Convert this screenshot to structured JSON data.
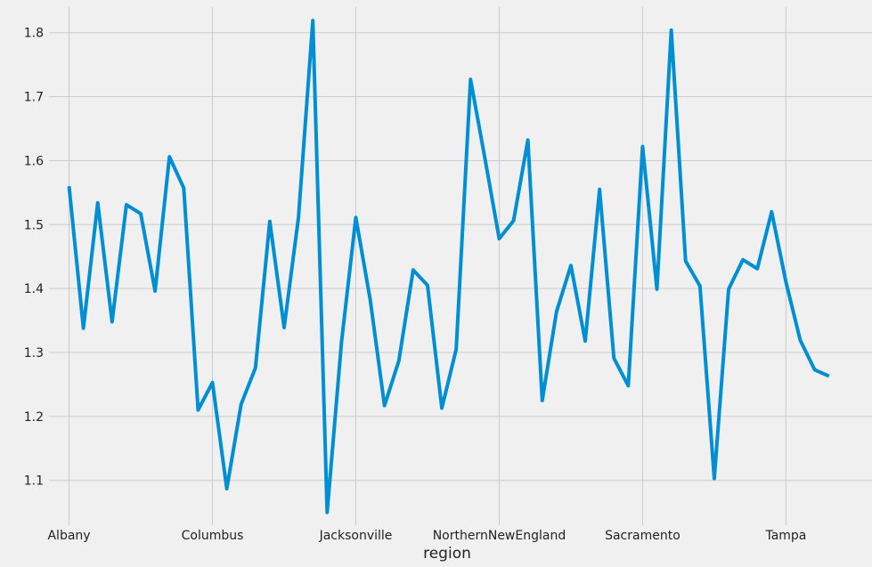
{
  "chart_data": {
    "type": "line",
    "title": "",
    "xlabel": "region",
    "ylabel": "",
    "x_tick_labels": [
      "Albany",
      "Columbus",
      "Jacksonville",
      "NorthernNewEngland",
      "Sacramento",
      "Tampa"
    ],
    "x_tick_positions": [
      0,
      10,
      20,
      30,
      40,
      50
    ],
    "y_ticks": [
      1.1,
      1.2,
      1.3,
      1.4,
      1.5,
      1.6,
      1.7,
      1.8
    ],
    "ylim": [
      1.03,
      1.84
    ],
    "xlim": [
      -1.4,
      56
    ],
    "grid": true,
    "line_color": "#008fd5",
    "background_color": "#f0f0f0",
    "grid_color": "#cbcbcb",
    "series": [
      {
        "values": [
          1.56,
          1.338,
          1.534,
          1.348,
          1.531,
          1.517,
          1.396,
          1.606,
          1.557,
          1.21,
          1.253,
          1.087,
          1.219,
          1.276,
          1.505,
          1.339,
          1.511,
          1.819,
          1.05,
          1.316,
          1.511,
          1.383,
          1.217,
          1.287,
          1.429,
          1.405,
          1.213,
          1.305,
          1.727,
          1.604,
          1.478,
          1.506,
          1.632,
          1.225,
          1.364,
          1.436,
          1.318,
          1.555,
          1.291,
          1.248,
          1.622,
          1.399,
          1.804,
          1.443,
          1.404,
          1.103,
          1.399,
          1.445,
          1.431,
          1.52,
          1.41,
          1.319,
          1.273,
          1.263
        ]
      }
    ]
  }
}
